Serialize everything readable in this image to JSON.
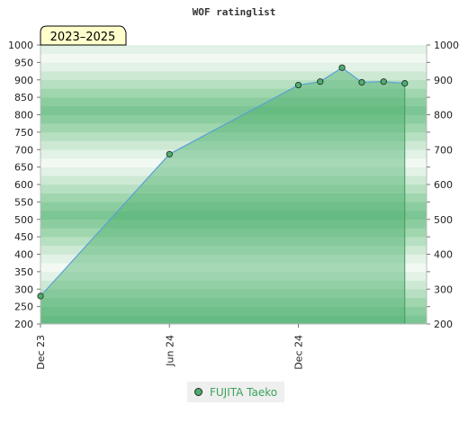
{
  "chart_data": {
    "type": "area",
    "title": "WOF ratinglist",
    "period_badge": "2023–2025",
    "ylim": [
      200,
      1000
    ],
    "y_ticks": [
      200,
      250,
      300,
      350,
      400,
      450,
      500,
      550,
      600,
      650,
      700,
      750,
      800,
      850,
      900,
      950,
      1000
    ],
    "y_ticks_right": [
      200,
      300,
      400,
      500,
      600,
      700,
      800,
      900,
      1000
    ],
    "x_tick_labels": [
      "Dec 23",
      "Jun 24",
      "Dec 24"
    ],
    "xlim": [
      "2023-12-01",
      "2025-06-01"
    ],
    "x_ticks": [
      "2023-12-01",
      "2024-06-01",
      "2024-12-01"
    ],
    "series": [
      {
        "name": "FUJITA Taeko",
        "color": "#5aa0d8",
        "fill": "#4caf6c",
        "points": [
          {
            "x": "2023-12-01",
            "y": 280
          },
          {
            "x": "2024-06-01",
            "y": 687
          },
          {
            "x": "2024-12-01",
            "y": 885
          },
          {
            "x": "2025-01-01",
            "y": 895
          },
          {
            "x": "2025-02-01",
            "y": 935
          },
          {
            "x": "2025-03-01",
            "y": 893
          },
          {
            "x": "2025-04-01",
            "y": 895
          },
          {
            "x": "2025-05-01",
            "y": 890
          }
        ]
      }
    ],
    "legend": {
      "position": "bottom-center"
    },
    "grid": true
  }
}
